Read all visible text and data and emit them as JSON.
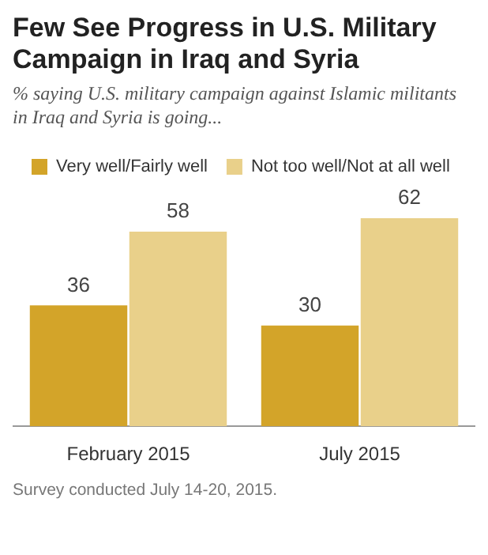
{
  "chart_data": {
    "type": "bar",
    "title": "Few See Progress in U.S. Military Campaign in Iraq and Syria",
    "subtitle": "% saying U.S. military campaign against Islamic militants in Iraq and Syria is going...",
    "categories": [
      "February 2015",
      "July 2015"
    ],
    "series": [
      {
        "name": "Very well/Fairly well",
        "color": "#d3a429",
        "values": [
          36,
          30
        ]
      },
      {
        "name": "Not too well/Not at all well",
        "color": "#e9d08a",
        "values": [
          58,
          62
        ]
      }
    ],
    "data_labels": true,
    "legend": "top left",
    "grid": false,
    "annotations": [
      "Survey conducted July 14-20, 2015."
    ]
  }
}
